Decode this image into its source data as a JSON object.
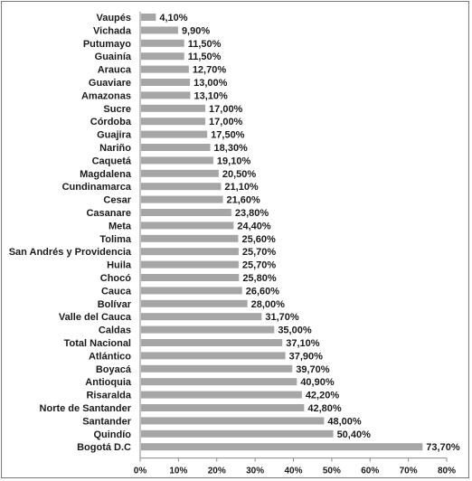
{
  "chart_data": {
    "type": "bar",
    "orientation": "horizontal",
    "title": "",
    "xlabel": "",
    "ylabel": "",
    "xlim": [
      0,
      80
    ],
    "x_ticks": [
      "0%",
      "10%",
      "20%",
      "30%",
      "40%",
      "50%",
      "60%",
      "70%",
      "80%"
    ],
    "grid": false,
    "bar_color": "#a6a6a6",
    "categories": [
      "Vaupés",
      "Vichada",
      "Putumayo",
      "Guainía",
      "Arauca",
      "Guaviare",
      "Amazonas",
      "Sucre",
      "Córdoba",
      "Guajira",
      "Nariño",
      "Caquetá",
      "Magdalena",
      "Cundinamarca",
      "Cesar",
      "Casanare",
      "Meta",
      "Tolima",
      "San Andrés y Providencia",
      "Huila",
      "Chocó",
      "Cauca",
      "Bolívar",
      "Valle del Cauca",
      "Caldas",
      "Total Nacional",
      "Atlántico",
      "Boyacá",
      "Antioquia",
      "Risaralda",
      "Norte de Santander",
      "Santander",
      "Quindío",
      "Bogotá D.C"
    ],
    "values": [
      4.1,
      9.9,
      11.5,
      11.5,
      12.7,
      13.0,
      13.1,
      17.0,
      17.0,
      17.5,
      18.3,
      19.1,
      20.5,
      21.1,
      21.6,
      23.8,
      24.4,
      25.6,
      25.7,
      25.7,
      25.8,
      26.6,
      28.0,
      31.7,
      35.0,
      37.1,
      37.9,
      39.7,
      40.9,
      42.2,
      42.8,
      48.0,
      50.4,
      73.7
    ],
    "value_labels": [
      "4,10%",
      "9,90%",
      "11,50%",
      "11,50%",
      "12,70%",
      "13,00%",
      "13,10%",
      "17,00%",
      "17,00%",
      "17,50%",
      "18,30%",
      "19,10%",
      "20,50%",
      "21,10%",
      "21,60%",
      "23,80%",
      "24,40%",
      "25,60%",
      "25,70%",
      "25,70%",
      "25,80%",
      "26,60%",
      "28,00%",
      "31,70%",
      "35,00%",
      "37,10%",
      "37,90%",
      "39,70%",
      "40,90%",
      "42,20%",
      "42,80%",
      "48,00%",
      "50,40%",
      "73,70%"
    ]
  }
}
